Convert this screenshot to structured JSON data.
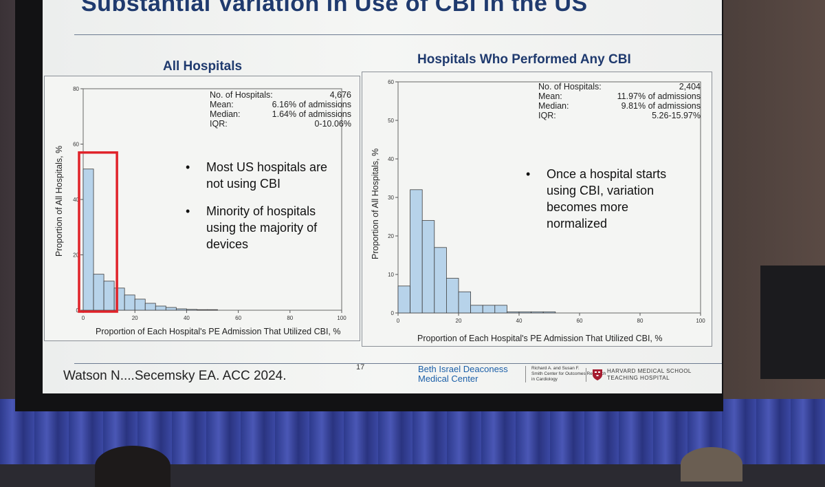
{
  "slide": {
    "title": "Substantial Variation in Use of CBI in the US",
    "citation": "Watson N....Secemsky EA. ACC 2024.",
    "page_number": "17",
    "logos": {
      "bidmc_line1": "Beth Israel Deaconess",
      "bidmc_line2": "Medical Center",
      "smith_line1": "Richard A. and Susan F.",
      "smith_line2": "Smith Center for Outcomes Research",
      "smith_line3": "in Cardiology",
      "harvard_line1": "HARVARD MEDICAL SCHOOL",
      "harvard_line2": "TEACHING HOSPITAL"
    }
  },
  "left_panel": {
    "heading": "All Hospitals",
    "stats": [
      {
        "label": "No. of Hospitals:",
        "value": "4,676"
      },
      {
        "label": "Mean:",
        "value": "6.16% of admissions"
      },
      {
        "label": "Median:",
        "value": "1.64% of admissions"
      },
      {
        "label": "IQR:",
        "value": "0-10.06%"
      }
    ],
    "bullets": [
      "Most US hospitals are not using CBI",
      "Minority of hospitals using the majority of devices"
    ]
  },
  "right_panel": {
    "heading": "Hospitals Who Performed Any CBI",
    "stats": [
      {
        "label": "No. of Hospitals:",
        "value": "2,404"
      },
      {
        "label": "Mean:",
        "value": "11.97% of admissions"
      },
      {
        "label": "Median:",
        "value": "9.81% of admissions"
      },
      {
        "label": "IQR:",
        "value": "5.26-15.97%"
      }
    ],
    "bullets": [
      "Once a hospital starts using CBI, variation becomes more normalized"
    ]
  },
  "colors": {
    "bar_fill": "#b7d3ea",
    "bar_stroke": "#3c3c3c",
    "highlight": "#e0232a",
    "heading": "#1f3a6e"
  },
  "chart_data": [
    {
      "type": "bar",
      "title": "All Hospitals",
      "xlabel": "Proportion of Each Hospital's PE Admission That Utilized CBI, %",
      "ylabel": "Proportion of All Hospitals, %",
      "xlim": [
        0,
        100
      ],
      "ylim": [
        0,
        80
      ],
      "xticks": [
        0,
        20,
        40,
        60,
        80,
        100
      ],
      "yticks": [
        0,
        20,
        40,
        60,
        80
      ],
      "bin_width": 4,
      "bin_starts": [
        0,
        4,
        8,
        12,
        16,
        20,
        24,
        28,
        32,
        36,
        40,
        44,
        48
      ],
      "values": [
        51,
        13,
        10.5,
        8,
        5.5,
        4,
        2.5,
        1.5,
        1,
        0.5,
        0.3,
        0.2,
        0.2
      ],
      "highlight_range": [
        0,
        12
      ]
    },
    {
      "type": "bar",
      "title": "Hospitals Who Performed Any CBI",
      "xlabel": "Proportion of Each Hospital's PE Admission That Utilized CBI, %",
      "ylabel": "Proportion of All Hospitals, %",
      "xlim": [
        0,
        100
      ],
      "ylim": [
        0,
        60
      ],
      "xticks": [
        0,
        20,
        40,
        60,
        80,
        100
      ],
      "yticks": [
        0,
        10,
        20,
        30,
        40,
        50,
        60
      ],
      "bin_width": 4,
      "bin_starts": [
        0,
        4,
        8,
        12,
        16,
        20,
        24,
        28,
        32,
        36,
        40,
        44,
        48
      ],
      "values": [
        7,
        32,
        24,
        17,
        9,
        5.5,
        2,
        2,
        2,
        0.3,
        0.3,
        0.3,
        0.3
      ]
    }
  ]
}
